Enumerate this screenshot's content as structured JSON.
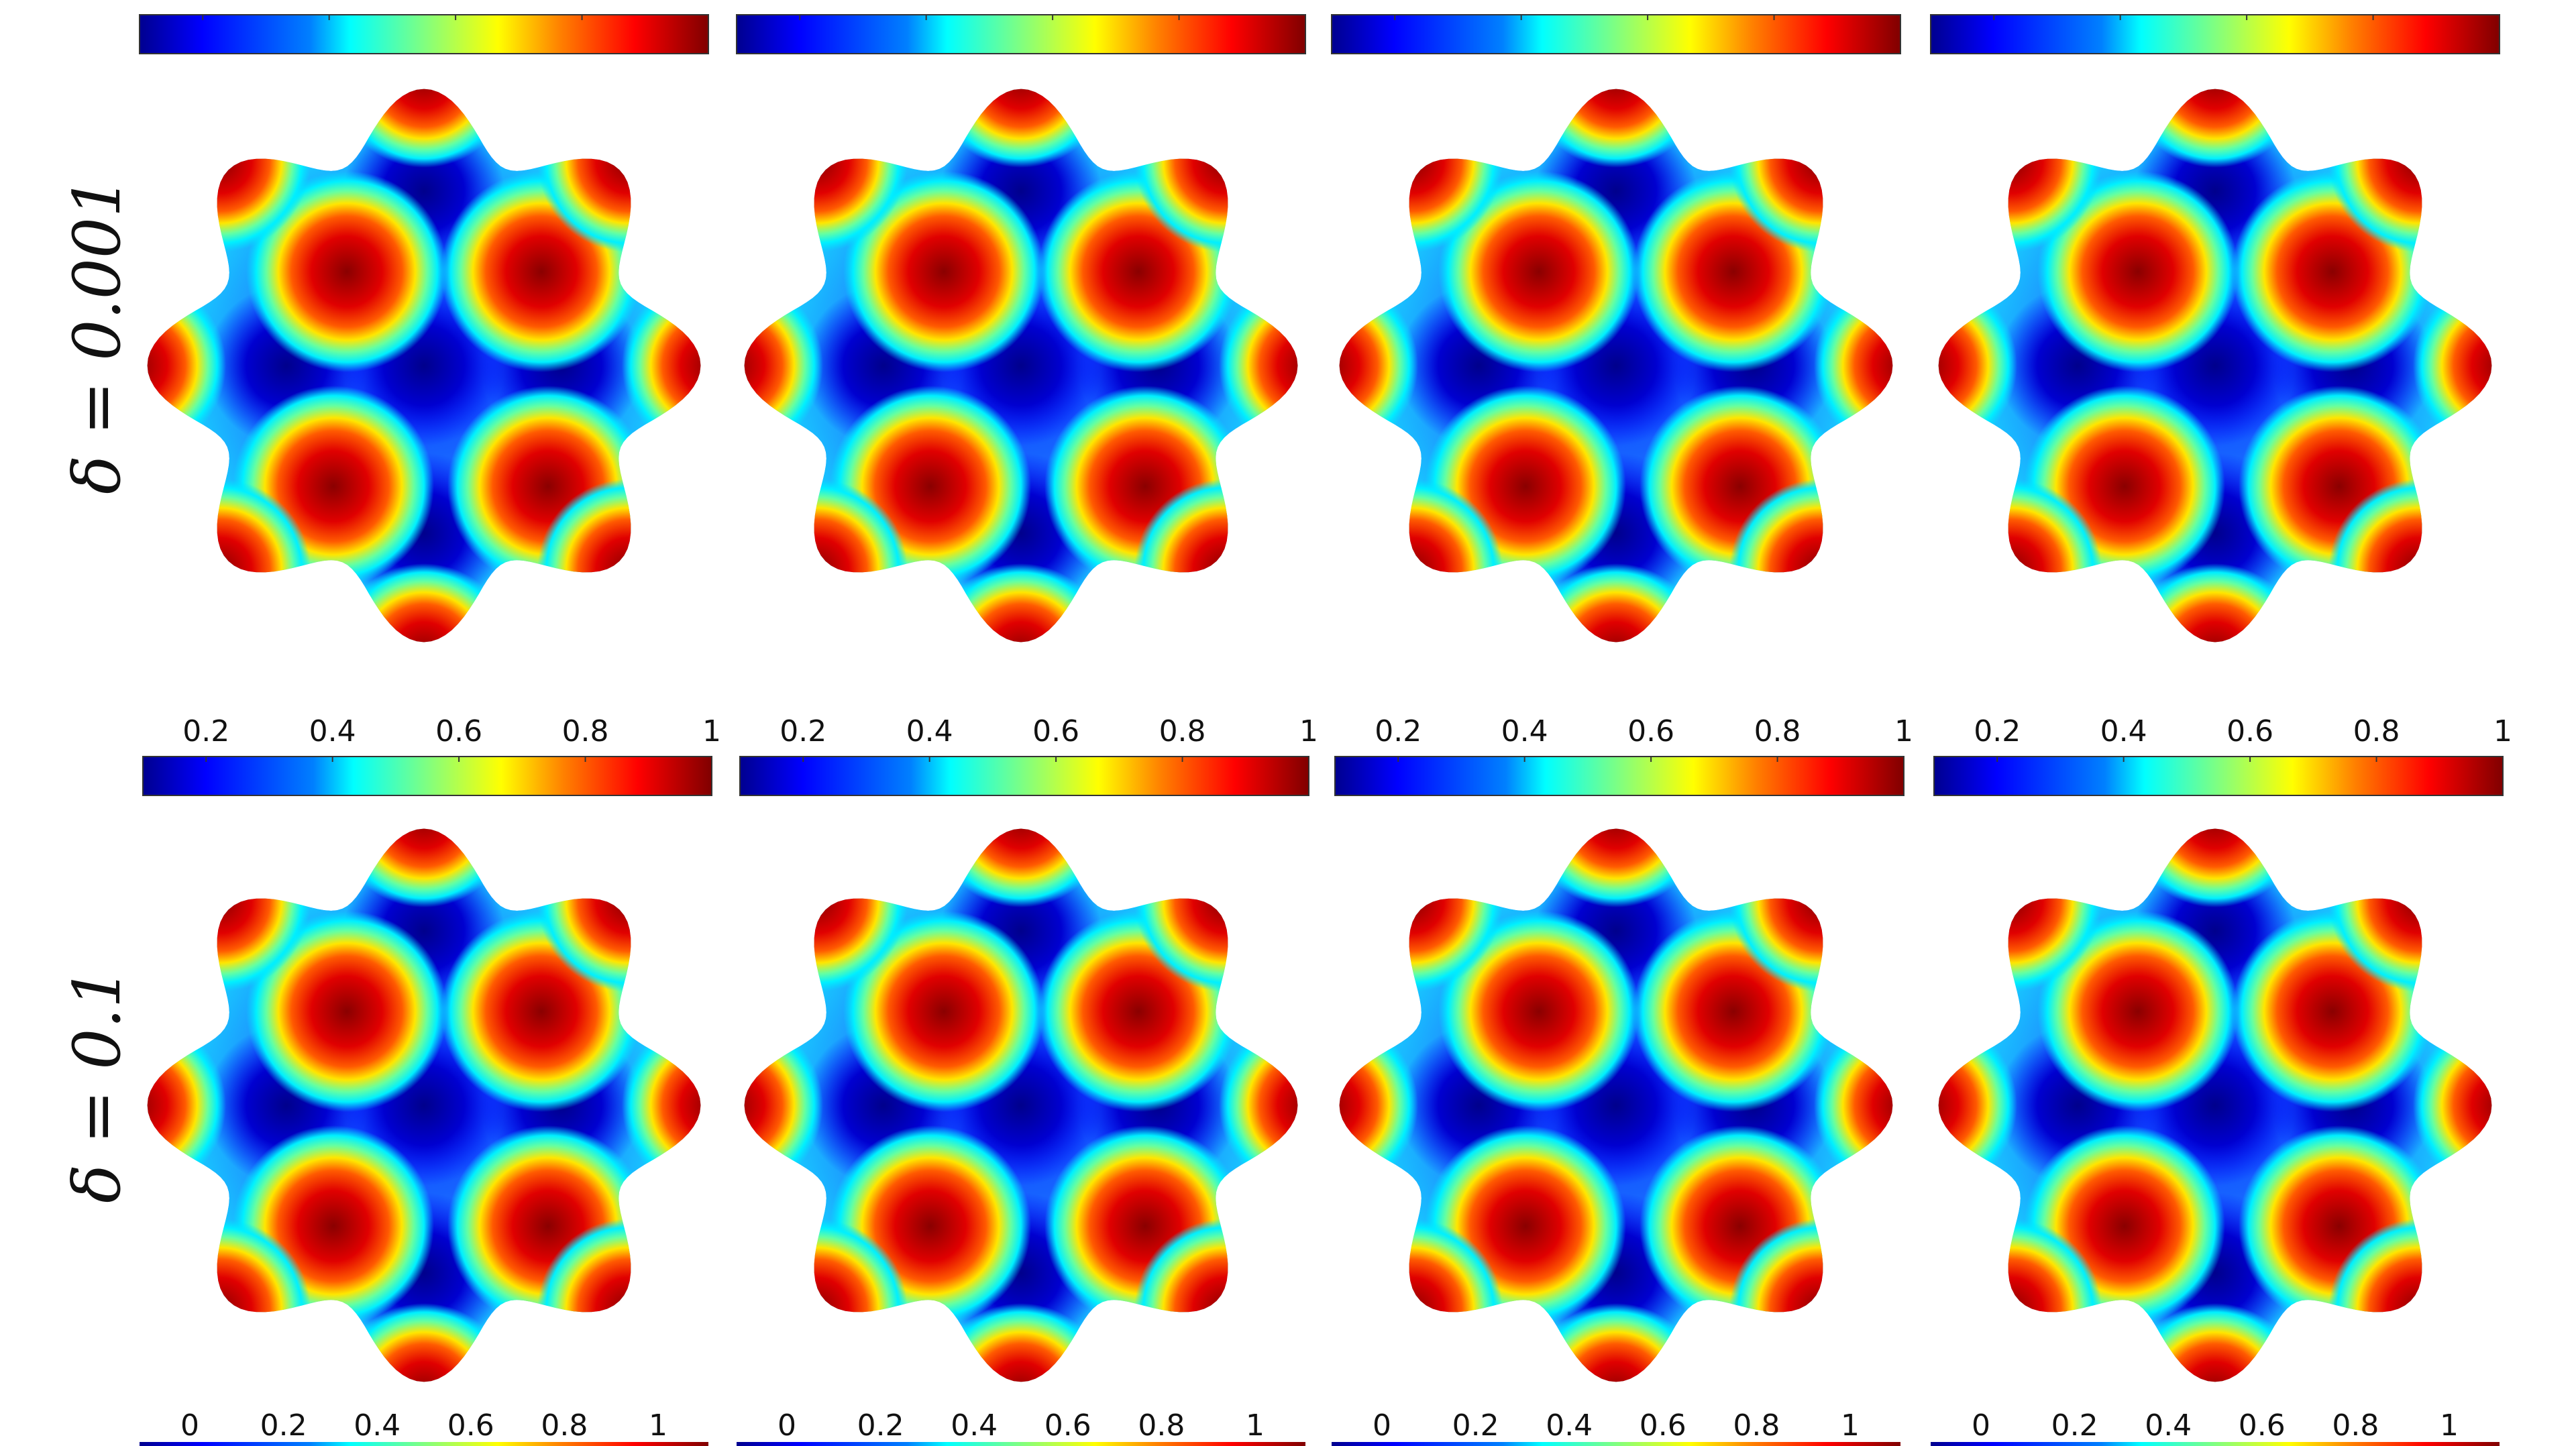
{
  "rows": [
    {
      "label": "δ = 0.001",
      "top_colorbar": {
        "ticks": [
          "0.2",
          "0.4",
          "0.6",
          "0.8",
          "1"
        ],
        "min": 0.1,
        "max": 1.0
      },
      "panels": 4
    },
    {
      "label": "δ = 0.1",
      "top_colorbar": {
        "ticks": [
          "0.2",
          "0.4",
          "0.6",
          "0.8",
          "1"
        ],
        "min": 0.1,
        "max": 1.0
      },
      "bottom_colorbar_ticks": [
        "0",
        "0.2",
        "0.4",
        "0.6",
        "0.8",
        "1"
      ],
      "panels": 4
    }
  ],
  "colormap": "jet",
  "colors": {
    "jet": [
      "#00008f",
      "#0000ff",
      "#0080ff",
      "#00ffff",
      "#80ff80",
      "#ffff00",
      "#ff8000",
      "#ff0000",
      "#800000"
    ]
  }
}
